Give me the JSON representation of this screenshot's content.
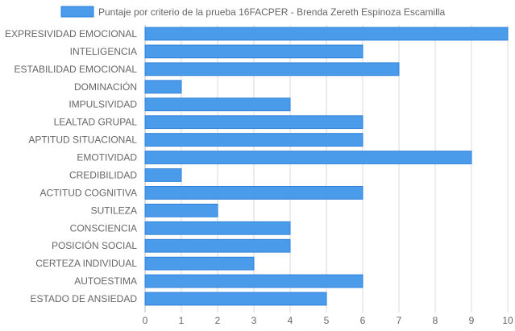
{
  "chart_data": {
    "type": "bar",
    "orientation": "horizontal",
    "legend": {
      "label": "Puntaje por criterio de la prueba 16FACPER - Brenda Zereth Espinoza Escamilla",
      "position": "top"
    },
    "categories": [
      "EXPRESIVIDAD EMOCIONAL",
      "INTELIGENCIA",
      "ESTABILIDAD EMOCIONAL",
      "DOMINACIÓN",
      "IMPULSIVIDAD",
      "LEALTAD GRUPAL",
      "APTITUD SITUACIONAL",
      "EMOTIVIDAD",
      "CREDIBILIDAD",
      "ACTITUD COGNITIVA",
      "SUTILEZA",
      "CONSCIENCIA",
      "POSICIÓN SOCIAL",
      "CERTEZA INDIVIDUAL",
      "AUTOESTIMA",
      "ESTADO DE ANSIEDAD"
    ],
    "series": [
      {
        "name": "Puntaje por criterio de la prueba 16FACPER - Brenda Zereth Espinoza Escamilla",
        "values": [
          10,
          6,
          7,
          1,
          4,
          6,
          6,
          9,
          1,
          6,
          2,
          4,
          4,
          3,
          6,
          5
        ]
      }
    ],
    "xlim": [
      0,
      10
    ],
    "xticks": [
      "0",
      "1",
      "2",
      "3",
      "4",
      "5",
      "6",
      "7",
      "8",
      "9",
      "10"
    ],
    "grid": true,
    "colors": {
      "bar_fill": "#4a9ceb",
      "bar_stroke": "#2f80d9"
    }
  }
}
